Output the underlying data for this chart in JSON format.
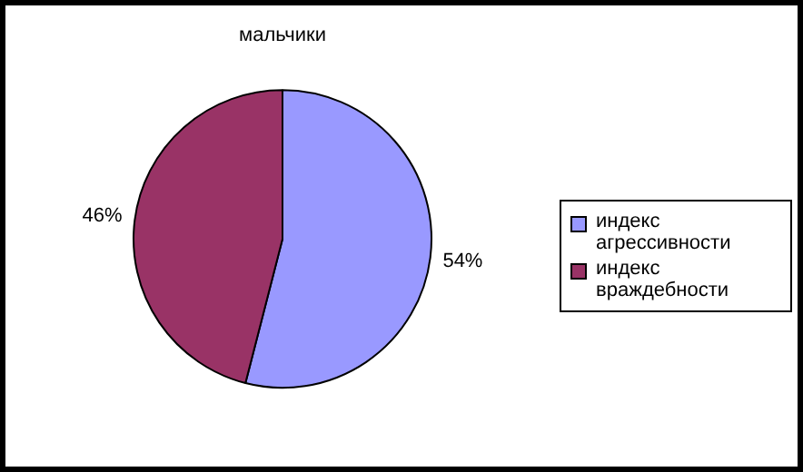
{
  "chart_data": {
    "type": "pie",
    "title": "мальчики",
    "categories": [
      "индекс агрессивности",
      "индекс враждебности"
    ],
    "values": [
      54,
      46
    ],
    "colors": [
      "#9999ff",
      "#993366"
    ],
    "value_labels": [
      "54%",
      "46%"
    ],
    "legend": "right"
  }
}
